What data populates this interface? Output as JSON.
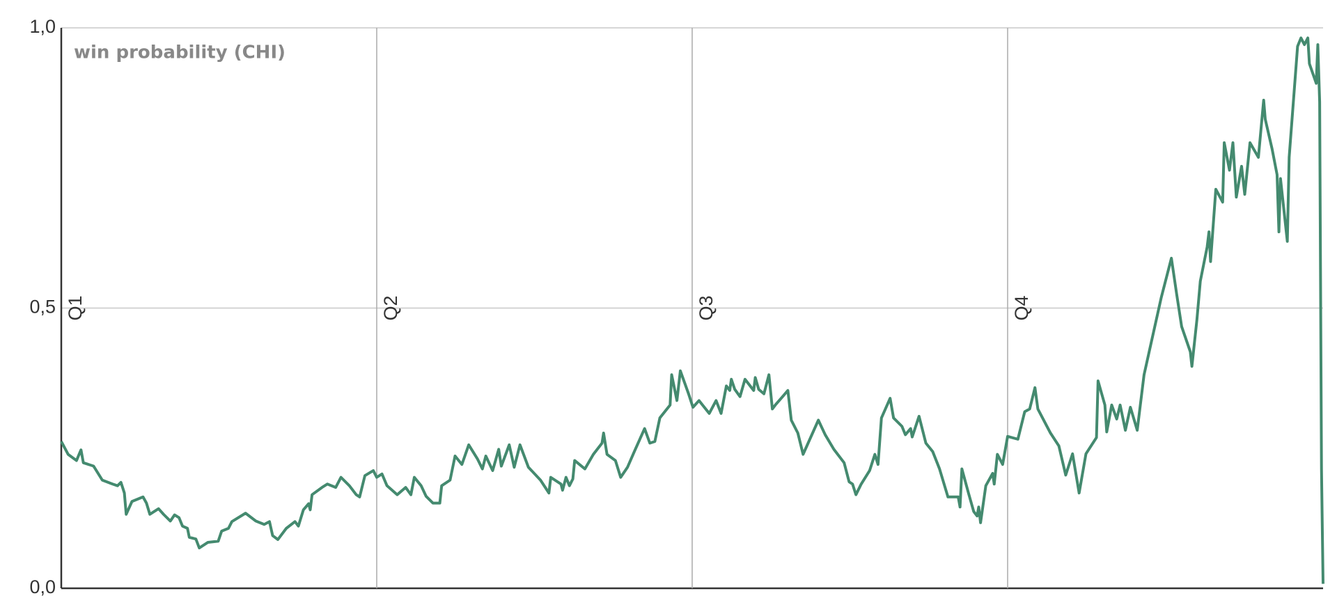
{
  "chart_data": {
    "type": "line",
    "title": "win probability (CHI)",
    "color": "#448a6f",
    "xlim": [
      0,
      48
    ],
    "ylim": [
      0,
      1
    ],
    "xticks": [
      {
        "value": 0,
        "label": "Q1"
      },
      {
        "value": 12,
        "label": "Q2"
      },
      {
        "value": 24,
        "label": "Q3"
      },
      {
        "value": 36,
        "label": "Q4"
      }
    ],
    "yticks": [
      {
        "value": 0,
        "label": "0,0"
      },
      {
        "value": 0.5,
        "label": "0,5"
      },
      {
        "value": 1,
        "label": "1,0"
      }
    ],
    "grid": true,
    "x": [
      0,
      0.26,
      0.58,
      0.75,
      0.84,
      1.23,
      1.56,
      1.95,
      2.14,
      2.27,
      2.4,
      2.47,
      2.69,
      3.11,
      3.24,
      3.37,
      3.7,
      3.89,
      4.15,
      4.31,
      4.48,
      4.61,
      4.8,
      4.87,
      5.12,
      5.25,
      5.58,
      5.97,
      6.1,
      6.36,
      6.49,
      7.01,
      7.4,
      7.72,
      7.92,
      8.04,
      8.24,
      8.56,
      8.89,
      9.02,
      9.21,
      9.41,
      9.47,
      9.54,
      9.92,
      10.12,
      10.44,
      10.64,
      10.96,
      11.22,
      11.35,
      11.55,
      11.87,
      12.0,
      12.2,
      12.39,
      12.78,
      13.1,
      13.3,
      13.43,
      13.69,
      13.88,
      14.14,
      14.4,
      14.47,
      14.79,
      14.98,
      15.24,
      15.5,
      15.83,
      16.02,
      16.15,
      16.41,
      16.64,
      16.74,
      17.04,
      17.23,
      17.45,
      17.77,
      18.23,
      18.55,
      18.62,
      19.01,
      19.07,
      19.2,
      19.33,
      19.46,
      19.53,
      19.92,
      20.24,
      20.57,
      20.63,
      20.76,
      21.08,
      21.28,
      21.54,
      21.8,
      22.19,
      22.39,
      22.58,
      22.77,
      23.16,
      23.22,
      23.42,
      23.55,
      23.87,
      24.03,
      24.26,
      24.65,
      24.91,
      25.1,
      25.3,
      25.43,
      25.49,
      25.62,
      25.82,
      26.01,
      26.34,
      26.4,
      26.53,
      26.73,
      26.92,
      27.05,
      27.18,
      27.44,
      27.64,
      27.77,
      28.02,
      28.22,
      28.41,
      28.8,
      29.06,
      29.39,
      29.78,
      29.97,
      30.1,
      30.23,
      30.43,
      30.75,
      30.95,
      31.07,
      31.2,
      31.53,
      31.66,
      31.98,
      32.11,
      32.31,
      32.37,
      32.63,
      32.89,
      33.15,
      33.41,
      33.73,
      34.12,
      34.19,
      34.26,
      34.51,
      34.71,
      34.84,
      34.9,
      34.97,
      35.17,
      35.43,
      35.49,
      35.61,
      35.81,
      36.0,
      36.39,
      36.65,
      36.84,
      37.04,
      37.15,
      37.63,
      37.95,
      38.21,
      38.47,
      38.72,
      38.98,
      39.38,
      39.44,
      39.7,
      39.77,
      39.96,
      40.15,
      40.28,
      40.48,
      40.67,
      40.93,
      41.19,
      41.84,
      42.23,
      42.43,
      42.62,
      42.95,
      43.01,
      43.2,
      43.33,
      43.59,
      43.66,
      43.72,
      43.92,
      44.18,
      44.24,
      44.44,
      44.57,
      44.7,
      44.9,
      45.02,
      45.22,
      45.54,
      45.74,
      45.8,
      46.06,
      46.25,
      46.32,
      46.38,
      46.64,
      46.71,
      47.03,
      47.16,
      47.29,
      47.42,
      47.48,
      47.74,
      47.8,
      47.87,
      47.94,
      48.0
    ],
    "values": [
      0.262,
      0.239,
      0.228,
      0.247,
      0.224,
      0.218,
      0.193,
      0.186,
      0.183,
      0.189,
      0.17,
      0.132,
      0.155,
      0.163,
      0.152,
      0.132,
      0.142,
      0.132,
      0.12,
      0.131,
      0.126,
      0.111,
      0.107,
      0.091,
      0.088,
      0.072,
      0.082,
      0.084,
      0.102,
      0.107,
      0.119,
      0.134,
      0.12,
      0.114,
      0.119,
      0.094,
      0.087,
      0.107,
      0.119,
      0.111,
      0.14,
      0.151,
      0.14,
      0.167,
      0.18,
      0.186,
      0.18,
      0.198,
      0.183,
      0.167,
      0.163,
      0.201,
      0.21,
      0.198,
      0.204,
      0.183,
      0.167,
      0.18,
      0.167,
      0.198,
      0.183,
      0.164,
      0.152,
      0.152,
      0.183,
      0.193,
      0.236,
      0.221,
      0.256,
      0.231,
      0.213,
      0.236,
      0.21,
      0.248,
      0.218,
      0.256,
      0.216,
      0.256,
      0.216,
      0.193,
      0.17,
      0.198,
      0.186,
      0.175,
      0.198,
      0.183,
      0.195,
      0.228,
      0.213,
      0.239,
      0.259,
      0.277,
      0.239,
      0.228,
      0.198,
      0.216,
      0.244,
      0.285,
      0.259,
      0.262,
      0.304,
      0.327,
      0.381,
      0.335,
      0.388,
      0.346,
      0.323,
      0.335,
      0.312,
      0.335,
      0.312,
      0.361,
      0.353,
      0.373,
      0.355,
      0.342,
      0.373,
      0.353,
      0.376,
      0.355,
      0.347,
      0.381,
      0.32,
      0.328,
      0.342,
      0.353,
      0.3,
      0.277,
      0.239,
      0.259,
      0.3,
      0.274,
      0.248,
      0.224,
      0.19,
      0.186,
      0.167,
      0.186,
      0.21,
      0.239,
      0.221,
      0.304,
      0.339,
      0.304,
      0.289,
      0.274,
      0.285,
      0.27,
      0.307,
      0.259,
      0.244,
      0.213,
      0.163,
      0.163,
      0.145,
      0.213,
      0.17,
      0.137,
      0.129,
      0.145,
      0.117,
      0.183,
      0.205,
      0.186,
      0.239,
      0.221,
      0.271,
      0.266,
      0.315,
      0.32,
      0.358,
      0.32,
      0.277,
      0.254,
      0.202,
      0.24,
      0.17,
      0.24,
      0.269,
      0.37,
      0.327,
      0.279,
      0.327,
      0.302,
      0.327,
      0.282,
      0.323,
      0.282,
      0.381,
      0.518,
      0.589,
      0.525,
      0.467,
      0.422,
      0.396,
      0.479,
      0.548,
      0.609,
      0.636,
      0.583,
      0.712,
      0.689,
      0.795,
      0.746,
      0.795,
      0.698,
      0.753,
      0.703,
      0.795,
      0.769,
      0.871,
      0.837,
      0.784,
      0.738,
      0.636,
      0.731,
      0.619,
      0.769,
      0.967,
      0.982,
      0.97,
      0.982,
      0.936,
      0.901,
      0.97,
      0.868,
      0.213,
      0.008
    ]
  }
}
